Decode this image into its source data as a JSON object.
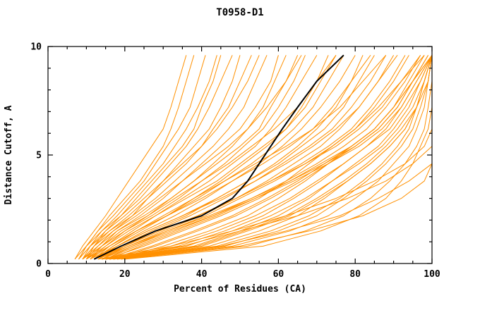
{
  "chart_data": {
    "type": "line",
    "title": "T0958-D1",
    "xlabel": "Percent of Residues (CA)",
    "ylabel": "Distance Cutoff, A",
    "xlim": [
      0,
      100
    ],
    "ylim": [
      0,
      10
    ],
    "x_ticks": [
      0,
      20,
      40,
      60,
      80,
      100
    ],
    "y_ticks": [
      0,
      5,
      10
    ],
    "x_minor_step": 5,
    "y_minor_step": 1,
    "grid": "off",
    "legend": "none",
    "colors": {
      "models": "#ff9000",
      "highlight": "#000000"
    },
    "y_grid": [
      0.2,
      0.8,
      1.5,
      2.2,
      3.0,
      3.8,
      4.6,
      5.4,
      6.2,
      7.2,
      8.4,
      9.6
    ],
    "highlight_series": {
      "name": "highlighted-model",
      "x": [
        12,
        19,
        28,
        40,
        48,
        52,
        55,
        58,
        61,
        65,
        70,
        77
      ]
    },
    "model_series": [
      [
        8,
        10,
        13,
        16,
        20,
        24,
        27,
        30,
        32,
        34,
        36,
        38
      ],
      [
        9,
        12,
        15,
        19,
        23,
        27,
        31,
        35,
        38,
        40,
        43,
        45
      ],
      [
        10,
        13,
        17,
        22,
        26,
        30,
        34,
        38,
        42,
        45,
        48,
        50
      ],
      [
        8,
        11,
        15,
        20,
        25,
        30,
        35,
        40,
        44,
        48,
        52,
        55
      ],
      [
        11,
        14,
        18,
        24,
        30,
        35,
        40,
        45,
        50,
        54,
        58,
        60
      ],
      [
        9,
        13,
        18,
        25,
        32,
        38,
        44,
        50,
        55,
        58,
        62,
        65
      ],
      [
        12,
        16,
        22,
        28,
        35,
        42,
        48,
        54,
        58,
        62,
        66,
        70
      ],
      [
        10,
        15,
        21,
        28,
        36,
        44,
        50,
        56,
        62,
        67,
        71,
        75
      ],
      [
        13,
        18,
        25,
        33,
        41,
        48,
        55,
        61,
        66,
        71,
        76,
        80
      ],
      [
        11,
        16,
        23,
        31,
        40,
        48,
        56,
        63,
        69,
        74,
        79,
        84
      ],
      [
        14,
        20,
        28,
        37,
        46,
        54,
        61,
        68,
        74,
        79,
        84,
        88
      ],
      [
        12,
        18,
        26,
        35,
        45,
        54,
        62,
        69,
        75,
        81,
        86,
        91
      ],
      [
        15,
        22,
        31,
        41,
        50,
        59,
        67,
        74,
        80,
        85,
        90,
        94
      ],
      [
        13,
        20,
        29,
        39,
        49,
        58,
        67,
        75,
        81,
        87,
        92,
        97
      ],
      [
        16,
        24,
        34,
        44,
        54,
        63,
        71,
        79,
        85,
        90,
        95,
        100
      ],
      [
        14,
        22,
        32,
        43,
        54,
        64,
        73,
        81,
        87,
        92,
        96,
        100
      ],
      [
        15,
        25,
        35,
        45,
        55,
        62,
        68,
        74,
        80,
        86,
        92,
        98
      ],
      [
        18,
        30,
        42,
        52,
        60,
        67,
        73,
        79,
        85,
        90,
        95,
        100
      ],
      [
        14,
        34,
        46,
        56,
        64,
        71,
        77,
        83,
        88,
        92,
        96,
        100
      ],
      [
        15,
        38,
        50,
        60,
        68,
        74,
        80,
        86,
        90,
        94,
        97,
        100
      ],
      [
        16,
        42,
        55,
        65,
        72,
        78,
        84,
        89,
        93,
        96,
        98,
        100
      ],
      [
        17,
        46,
        60,
        70,
        77,
        83,
        88,
        92,
        95,
        97,
        99,
        100
      ],
      [
        17,
        28,
        39,
        49,
        58,
        66,
        73,
        80,
        86,
        91,
        95,
        99
      ],
      [
        19,
        32,
        44,
        54,
        63,
        70,
        77,
        83,
        89,
        93,
        97,
        100
      ],
      [
        15,
        36,
        48,
        58,
        67,
        74,
        81,
        87,
        91,
        95,
        98,
        100
      ],
      [
        16,
        40,
        52,
        63,
        71,
        78,
        84,
        89,
        93,
        96,
        99,
        100
      ],
      [
        16,
        27,
        38,
        48,
        57,
        65,
        72,
        79,
        85,
        90,
        94,
        98
      ],
      [
        15,
        39,
        51,
        62,
        70,
        77,
        83,
        88,
        92,
        96,
        98,
        100
      ],
      [
        7,
        9,
        12,
        15,
        18,
        21,
        24,
        27,
        30,
        32,
        34,
        36
      ],
      [
        8,
        10,
        13,
        17,
        21,
        25,
        28,
        31,
        34,
        37,
        39,
        41
      ],
      [
        9,
        11,
        14,
        18,
        22,
        26,
        30,
        33,
        36,
        39,
        42,
        44
      ],
      [
        7,
        10,
        14,
        19,
        24,
        28,
        32,
        36,
        39,
        42,
        45,
        48
      ],
      [
        10,
        12,
        16,
        21,
        26,
        31,
        36,
        40,
        43,
        47,
        50,
        53
      ],
      [
        8,
        11,
        16,
        22,
        28,
        33,
        38,
        43,
        47,
        51,
        54,
        57
      ],
      [
        11,
        15,
        20,
        26,
        32,
        38,
        43,
        48,
        52,
        56,
        59,
        62
      ],
      [
        9,
        14,
        20,
        27,
        34,
        40,
        46,
        51,
        56,
        60,
        64,
        67
      ],
      [
        12,
        17,
        24,
        31,
        38,
        45,
        51,
        57,
        62,
        66,
        70,
        73
      ],
      [
        10,
        16,
        23,
        31,
        39,
        46,
        53,
        59,
        64,
        69,
        73,
        77
      ],
      [
        13,
        19,
        27,
        36,
        44,
        52,
        59,
        65,
        70,
        75,
        79,
        82
      ],
      [
        11,
        18,
        26,
        35,
        44,
        52,
        60,
        66,
        72,
        77,
        81,
        85
      ],
      [
        14,
        21,
        30,
        40,
        49,
        57,
        64,
        71,
        76,
        81,
        86,
        90
      ],
      [
        12,
        20,
        29,
        39,
        49,
        58,
        66,
        73,
        79,
        84,
        89,
        93
      ],
      [
        15,
        23,
        33,
        43,
        53,
        62,
        70,
        77,
        83,
        88,
        93,
        97
      ],
      [
        13,
        21,
        31,
        42,
        53,
        63,
        72,
        80,
        86,
        91,
        95,
        99
      ],
      [
        14,
        35,
        50,
        65,
        78,
        88,
        95,
        100,
        100,
        100,
        100,
        100
      ],
      [
        16,
        45,
        62,
        76,
        86,
        94,
        100,
        100,
        100,
        100,
        100,
        100
      ],
      [
        18,
        50,
        68,
        82,
        92,
        98,
        100,
        100,
        100,
        100,
        100,
        100
      ],
      [
        13,
        32,
        48,
        62,
        75,
        85,
        93,
        98,
        100,
        100,
        100,
        100
      ],
      [
        15,
        44,
        58,
        68,
        76,
        82,
        87,
        91,
        94,
        96,
        98,
        100
      ],
      [
        17,
        48,
        63,
        73,
        80,
        86,
        90,
        94,
        96,
        98,
        99,
        100
      ],
      [
        19,
        52,
        67,
        77,
        84,
        89,
        93,
        96,
        98,
        99,
        100,
        100
      ],
      [
        20,
        56,
        71,
        81,
        88,
        92,
        95,
        97,
        99,
        100,
        100,
        100
      ],
      [
        9,
        12,
        17,
        23,
        29,
        35,
        41,
        47,
        52,
        57,
        62,
        66
      ],
      [
        10,
        14,
        19,
        26,
        33,
        40,
        47,
        53,
        59,
        65,
        70,
        75
      ],
      [
        12,
        17,
        23,
        30,
        38,
        46,
        54,
        62,
        69,
        76,
        82,
        88
      ]
    ]
  }
}
